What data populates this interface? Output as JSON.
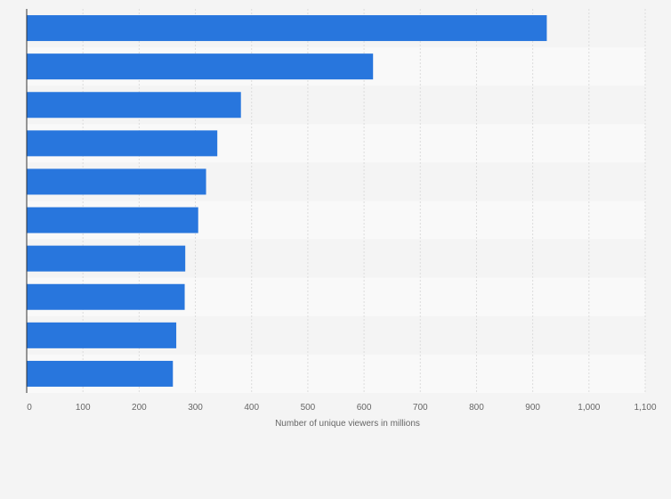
{
  "chart_data": {
    "type": "bar",
    "orientation": "horizontal",
    "categories": [
      "",
      "",
      "",
      "",
      "",
      "",
      "",
      "",
      "",
      ""
    ],
    "values": [
      925,
      616,
      381,
      339,
      319,
      305,
      282,
      281,
      266,
      260
    ],
    "xlabel": "Number of unique viewers in millions",
    "ylabel": "",
    "xlim": [
      0,
      1100
    ],
    "xticks": [
      0,
      100,
      200,
      300,
      400,
      500,
      600,
      700,
      800,
      900,
      1000,
      1100
    ],
    "xtick_labels": [
      "0",
      "100",
      "200",
      "300",
      "400",
      "500",
      "600",
      "700",
      "800",
      "900",
      "1,000",
      "1,100"
    ],
    "grid": true,
    "bar_color": "#2876dd",
    "band_colors": [
      "#f4f4f4",
      "#f9f9f9"
    ],
    "gridline_color": "#dcdcdc",
    "axis_color": "#333333"
  }
}
